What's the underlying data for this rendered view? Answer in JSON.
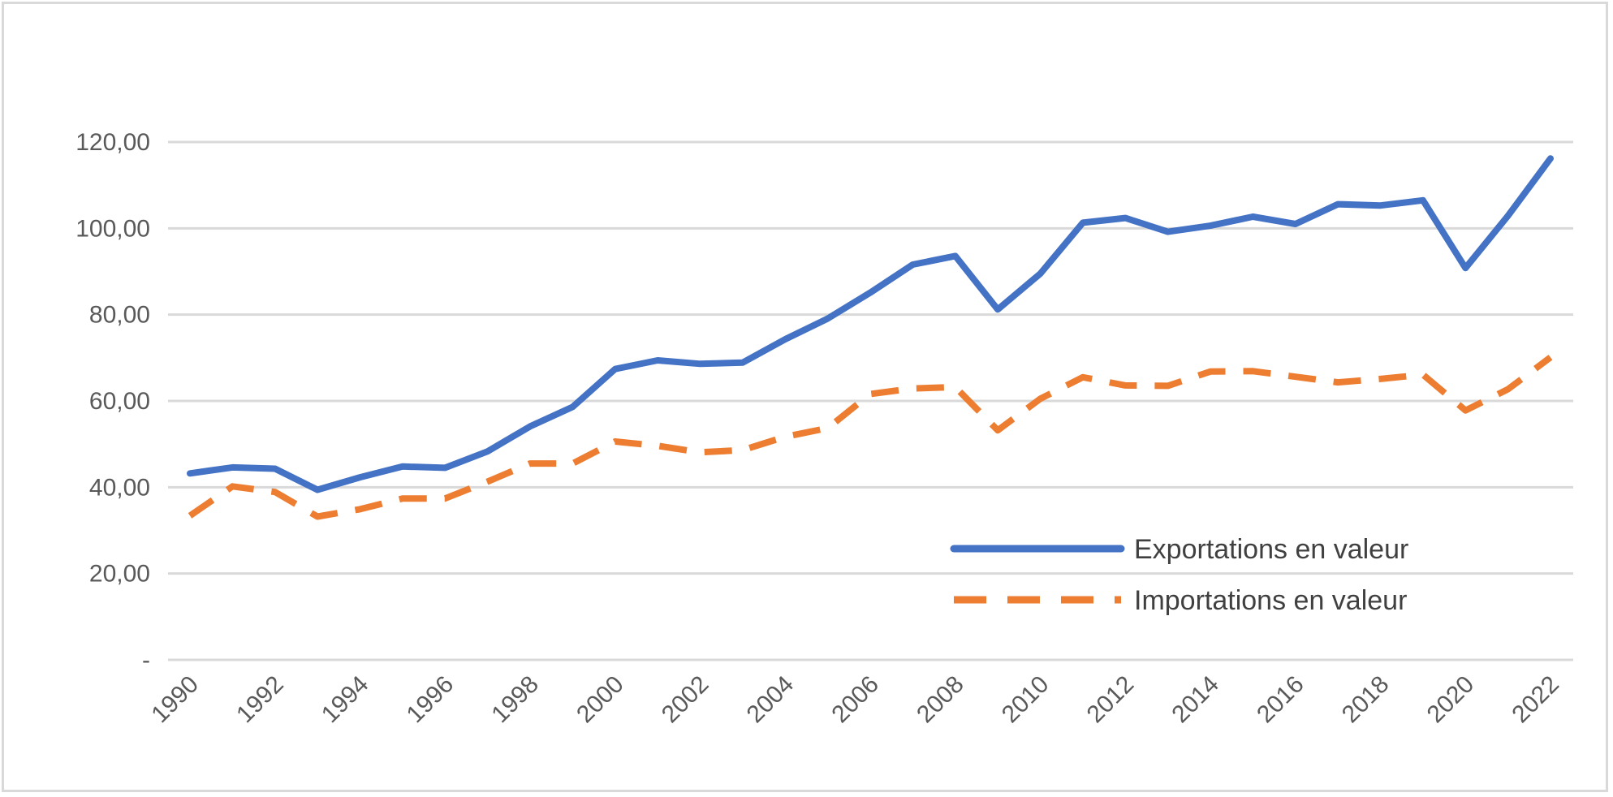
{
  "chart_data": {
    "type": "line",
    "title": "",
    "xlabel": "",
    "ylabel": "",
    "x": [
      1990,
      1991,
      1992,
      1993,
      1994,
      1995,
      1996,
      1997,
      1998,
      1999,
      2000,
      2001,
      2002,
      2003,
      2004,
      2005,
      2006,
      2007,
      2008,
      2009,
      2010,
      2011,
      2012,
      2013,
      2014,
      2015,
      2016,
      2017,
      2018,
      2019,
      2020,
      2021,
      2022
    ],
    "x_tick_labels": [
      "1990",
      "1992",
      "1994",
      "1996",
      "1998",
      "2000",
      "2002",
      "2004",
      "2006",
      "2008",
      "2010",
      "2012",
      "2014",
      "2016",
      "2018",
      "2020",
      "2022"
    ],
    "ylim": [
      0,
      120
    ],
    "y_ticks": [
      0,
      20,
      40,
      60,
      80,
      100,
      120
    ],
    "y_tick_labels": [
      "-",
      "20,00",
      "40,00",
      "60,00",
      "80,00",
      "100,00",
      "120,00"
    ],
    "grid": true,
    "legend_position": "bottom-right",
    "series": [
      {
        "name": "Exportations en valeur",
        "color": "#4472c4",
        "style": "solid",
        "values": [
          43.2,
          44.6,
          44.3,
          39.4,
          42.3,
          44.8,
          44.5,
          48.3,
          54.1,
          58.6,
          67.4,
          69.4,
          68.6,
          68.9,
          74.3,
          79.1,
          85.1,
          91.6,
          93.6,
          81.2,
          89.5,
          101.3,
          102.4,
          99.2,
          100.6,
          102.7,
          101.0,
          105.6,
          105.3,
          106.5,
          90.8,
          102.9,
          116.2
        ]
      },
      {
        "name": "Importations en valeur",
        "color": "#ed7d31",
        "style": "dashed",
        "values": [
          33.4,
          40.2,
          38.9,
          33.2,
          34.9,
          37.4,
          37.4,
          41.3,
          45.5,
          45.5,
          50.6,
          49.6,
          48.1,
          48.6,
          51.7,
          53.7,
          61.6,
          62.9,
          63.2,
          53.2,
          60.5,
          65.5,
          63.6,
          63.5,
          66.8,
          66.9,
          65.6,
          64.3,
          65.1,
          66.1,
          57.8,
          62.7,
          70.1
        ]
      }
    ]
  }
}
